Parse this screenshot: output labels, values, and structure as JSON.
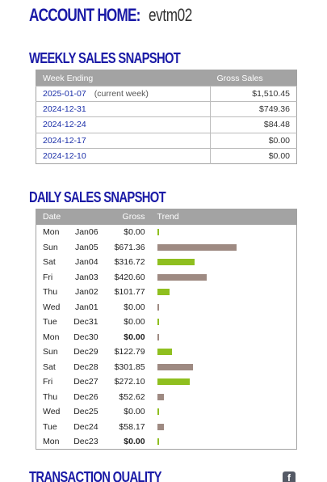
{
  "header": {
    "title_prefix": "ACCOUNT HOME:",
    "username": "evtm02"
  },
  "weekly": {
    "title": "WEEKLY SALES SNAPSHOT",
    "columns": [
      "Week Ending",
      "Gross Sales"
    ],
    "rows": [
      {
        "week": "2025-01-07",
        "note": "(current week)",
        "gross": "$1,510.45"
      },
      {
        "week": "2024-12-31",
        "note": "",
        "gross": "$749.36"
      },
      {
        "week": "2024-12-24",
        "note": "",
        "gross": "$84.48"
      },
      {
        "week": "2024-12-17",
        "note": "",
        "gross": "$0.00"
      },
      {
        "week": "2024-12-10",
        "note": "",
        "gross": "$0.00"
      }
    ]
  },
  "daily": {
    "title": "DAILY SALES SNAPSHOT",
    "columns": [
      "Date",
      "Gross",
      "Trend"
    ],
    "colors": {
      "weekday": "#8fbf1f",
      "weekend": "#9e8a82"
    },
    "rows": [
      {
        "day": "Mon",
        "date": "Jan06",
        "gross": "$0.00",
        "amount": 0,
        "bold": false,
        "weekend": false
      },
      {
        "day": "Sun",
        "date": "Jan05",
        "gross": "$671.36",
        "amount": 671.36,
        "bold": false,
        "weekend": true
      },
      {
        "day": "Sat",
        "date": "Jan04",
        "gross": "$316.72",
        "amount": 316.72,
        "bold": false,
        "weekend": false
      },
      {
        "day": "Fri",
        "date": "Jan03",
        "gross": "$420.60",
        "amount": 420.6,
        "bold": false,
        "weekend": true
      },
      {
        "day": "Thu",
        "date": "Jan02",
        "gross": "$101.77",
        "amount": 101.77,
        "bold": false,
        "weekend": false
      },
      {
        "day": "Wed",
        "date": "Jan01",
        "gross": "$0.00",
        "amount": 0,
        "bold": false,
        "weekend": true
      },
      {
        "day": "Tue",
        "date": "Dec31",
        "gross": "$0.00",
        "amount": 0,
        "bold": false,
        "weekend": false
      },
      {
        "day": "Mon",
        "date": "Dec30",
        "gross": "$0.00",
        "amount": 0,
        "bold": true,
        "weekend": true
      },
      {
        "day": "Sun",
        "date": "Dec29",
        "gross": "$122.79",
        "amount": 122.79,
        "bold": false,
        "weekend": false
      },
      {
        "day": "Sat",
        "date": "Dec28",
        "gross": "$301.85",
        "amount": 301.85,
        "bold": false,
        "weekend": true
      },
      {
        "day": "Fri",
        "date": "Dec27",
        "gross": "$272.10",
        "amount": 272.1,
        "bold": false,
        "weekend": false
      },
      {
        "day": "Thu",
        "date": "Dec26",
        "gross": "$52.62",
        "amount": 52.62,
        "bold": false,
        "weekend": true
      },
      {
        "day": "Wed",
        "date": "Dec25",
        "gross": "$0.00",
        "amount": 0,
        "bold": false,
        "weekend": false
      },
      {
        "day": "Tue",
        "date": "Dec24",
        "gross": "$58.17",
        "amount": 58.17,
        "bold": false,
        "weekend": true
      },
      {
        "day": "Mon",
        "date": "Dec23",
        "gross": "$0.00",
        "amount": 0,
        "bold": true,
        "weekend": false
      }
    ]
  },
  "transaction": {
    "title": "TRANSACTION QUALITY",
    "icon": "facebook-icon"
  }
}
